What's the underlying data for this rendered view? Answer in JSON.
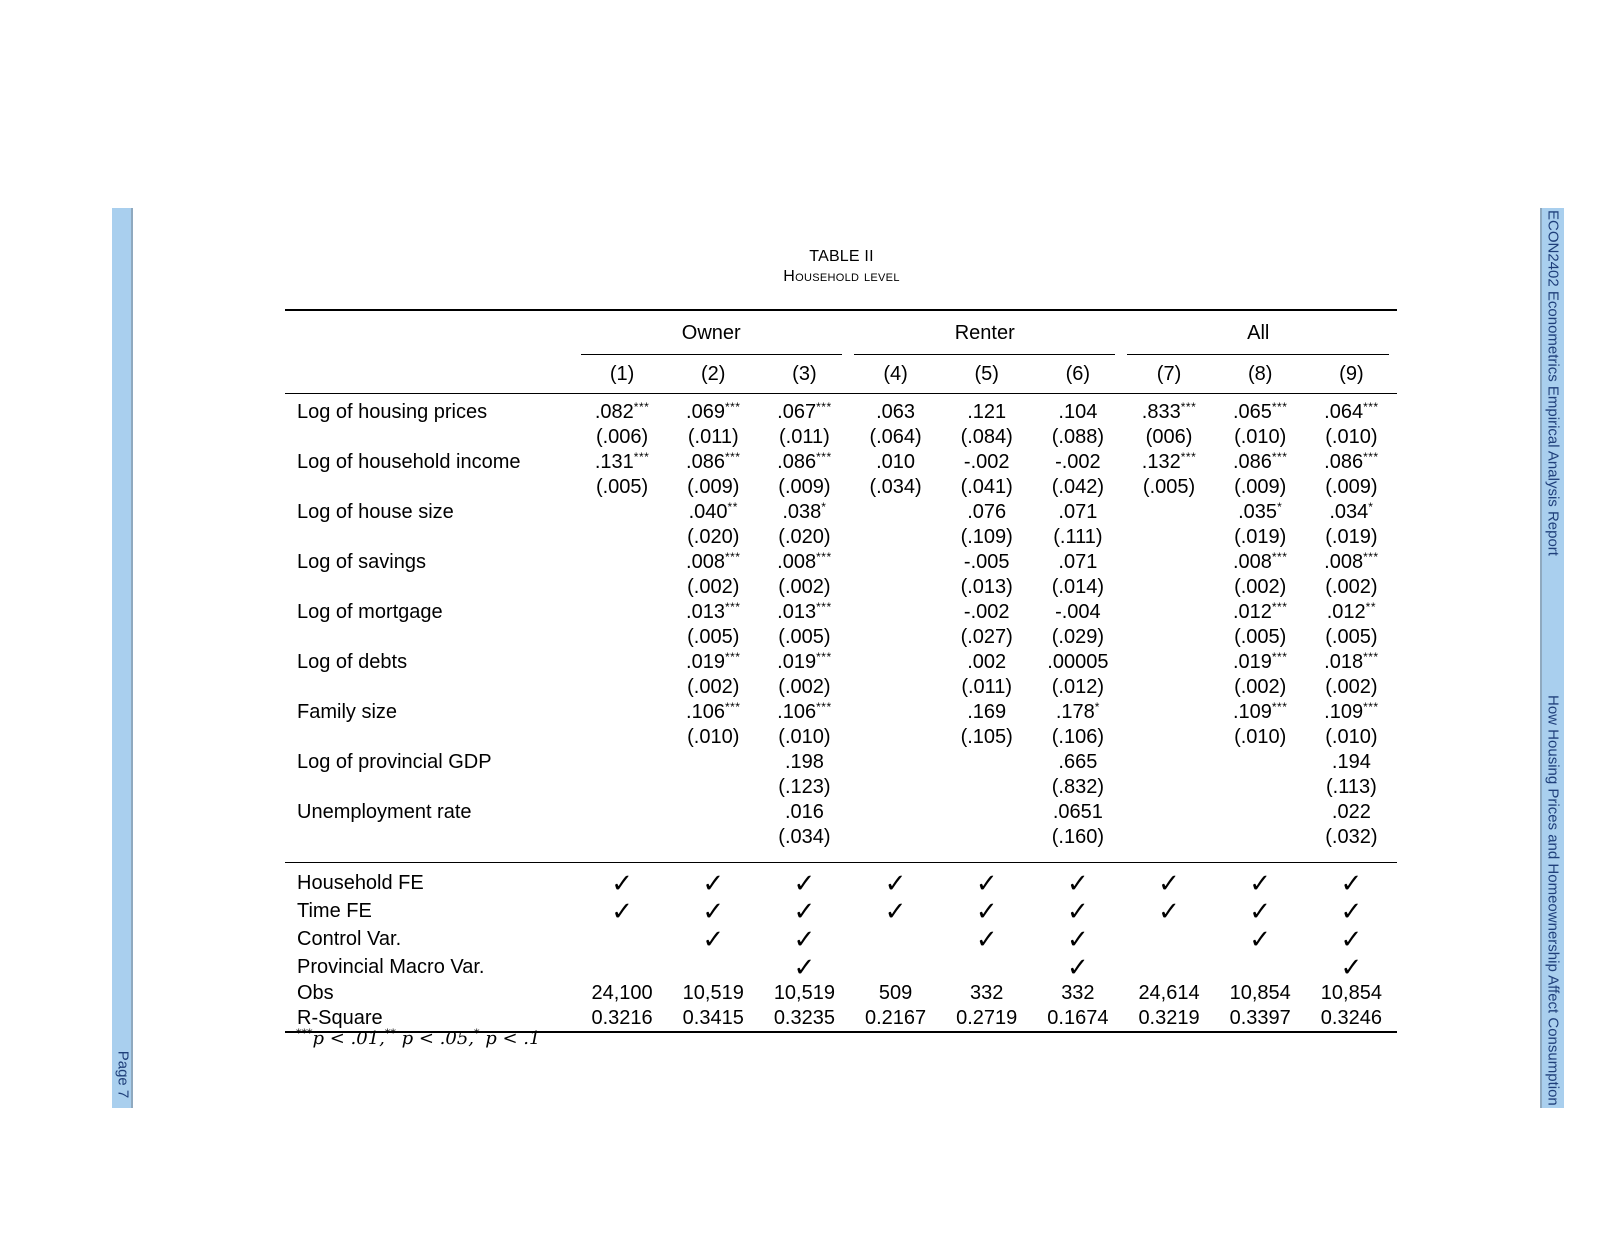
{
  "left_bar": {
    "page": "Page 7"
  },
  "right_bar": {
    "course": "ECON2402 Econometrics Empirical Analysis Report",
    "title": "How Housing Prices and Homeownership Affect Consumption"
  },
  "table": {
    "caption_line1": "TABLE II",
    "caption_line2": "Household level",
    "groups": [
      "Owner",
      "Renter",
      "All"
    ],
    "columns": [
      "(1)",
      "(2)",
      "(3)",
      "(4)",
      "(5)",
      "(6)",
      "(7)",
      "(8)",
      "(9)"
    ],
    "rows": [
      {
        "label": "Log of housing prices",
        "coef": [
          ".082",
          ".069",
          ".067",
          ".063",
          ".121",
          ".104",
          ".833",
          ".065",
          ".064"
        ],
        "stars": [
          "***",
          "***",
          "***",
          "",
          "",
          "",
          "***",
          "***",
          "***"
        ],
        "se": [
          "(.006)",
          "(.011)",
          "(.011)",
          "(.064)",
          "(.084)",
          "(.088)",
          "(006)",
          "(.010)",
          "(.010)"
        ]
      },
      {
        "label": "Log of household income",
        "coef": [
          ".131",
          ".086",
          ".086",
          ".010",
          "-.002",
          "-.002",
          ".132",
          ".086",
          ".086"
        ],
        "stars": [
          "***",
          "***",
          "***",
          "",
          "",
          "",
          "***",
          "***",
          "***"
        ],
        "se": [
          "(.005)",
          "(.009)",
          "(.009)",
          "(.034)",
          "(.041)",
          "(.042)",
          "(.005)",
          "(.009)",
          "(.009)"
        ]
      },
      {
        "label": "Log of house size",
        "coef": [
          "",
          ".040",
          ".038",
          "",
          ".076",
          ".071",
          "",
          ".035",
          ".034"
        ],
        "stars": [
          "",
          "**",
          "*",
          "",
          "",
          "",
          "",
          "*",
          "*"
        ],
        "se": [
          "",
          "(.020)",
          "(.020)",
          "",
          "(.109)",
          "(.111)",
          "",
          "(.019)",
          "(.019)"
        ]
      },
      {
        "label": "Log of savings",
        "coef": [
          "",
          ".008",
          ".008",
          "",
          "-.005",
          ".071",
          "",
          ".008",
          ".008"
        ],
        "stars": [
          "",
          "***",
          "***",
          "",
          "",
          "",
          "",
          "***",
          "***"
        ],
        "se": [
          "",
          "(.002)",
          "(.002)",
          "",
          "(.013)",
          "(.014)",
          "",
          "(.002)",
          "(.002)"
        ]
      },
      {
        "label": "Log of mortgage",
        "coef": [
          "",
          ".013",
          ".013",
          "",
          "-.002",
          "-.004",
          "",
          ".012",
          ".012"
        ],
        "stars": [
          "",
          "***",
          "***",
          "",
          "",
          "",
          "",
          "***",
          "**"
        ],
        "se": [
          "",
          "(.005)",
          "(.005)",
          "",
          "(.027)",
          "(.029)",
          "",
          "(.005)",
          "(.005)"
        ]
      },
      {
        "label": "Log of debts",
        "coef": [
          "",
          ".019",
          ".019",
          "",
          ".002",
          ".00005",
          "",
          ".019",
          ".018"
        ],
        "stars": [
          "",
          "***",
          "***",
          "",
          "",
          "",
          "",
          "***",
          "***"
        ],
        "se": [
          "",
          "(.002)",
          "(.002)",
          "",
          "(.011)",
          "(.012)",
          "",
          "(.002)",
          "(.002)"
        ]
      },
      {
        "label": "Family size",
        "coef": [
          "",
          ".106",
          ".106",
          "",
          ".169",
          ".178",
          "",
          ".109",
          ".109"
        ],
        "stars": [
          "",
          "***",
          "***",
          "",
          "",
          "*",
          "",
          "***",
          "***"
        ],
        "se": [
          "",
          "(.010)",
          "(.010)",
          "",
          "(.105)",
          "(.106)",
          "",
          "(.010)",
          "(.010)"
        ]
      },
      {
        "label": "Log of provincial GDP",
        "coef": [
          "",
          "",
          ".198",
          "",
          "",
          ".665",
          "",
          "",
          ".194"
        ],
        "stars": [
          "",
          "",
          "",
          "",
          "",
          "",
          "",
          "",
          ""
        ],
        "se": [
          "",
          "",
          "(.123)",
          "",
          "",
          "(.832)",
          "",
          "",
          "(.113)"
        ]
      },
      {
        "label": "Unemployment rate",
        "coef": [
          "",
          "",
          ".016",
          "",
          "",
          ".0651",
          "",
          "",
          ".022"
        ],
        "stars": [
          "",
          "",
          "",
          "",
          "",
          "",
          "",
          "",
          ""
        ],
        "se": [
          "",
          "",
          "(.034)",
          "",
          "",
          "(.160)",
          "",
          "",
          "(.032)"
        ]
      }
    ],
    "indicators": [
      {
        "label": "Household FE",
        "checks": [
          true,
          true,
          true,
          true,
          true,
          true,
          true,
          true,
          true
        ]
      },
      {
        "label": "Time FE",
        "checks": [
          true,
          true,
          true,
          true,
          true,
          true,
          true,
          true,
          true
        ]
      },
      {
        "label": "Control Var.",
        "checks": [
          false,
          true,
          true,
          false,
          true,
          true,
          false,
          true,
          true
        ]
      },
      {
        "label": "Provincial Macro Var.",
        "checks": [
          false,
          false,
          true,
          false,
          false,
          true,
          false,
          false,
          true
        ]
      }
    ],
    "check_mark": "✓",
    "stats": [
      {
        "label": "Obs",
        "values": [
          "24,100",
          "10,519",
          "10,519",
          "509",
          "332",
          "332",
          "24,614",
          "10,854",
          "10,854"
        ]
      },
      {
        "label": "R-Square",
        "values": [
          "0.3216",
          "0.3415",
          "0.3235",
          "0.2167",
          "0.2719",
          "0.1674",
          "0.3219",
          "0.3397",
          "0.3246"
        ]
      }
    ],
    "note": {
      "s1": "***",
      "t1": "p < .01,",
      "s2": "**",
      "t2": " p < .05,",
      "s3": "*",
      "t3": " p < .1"
    }
  }
}
